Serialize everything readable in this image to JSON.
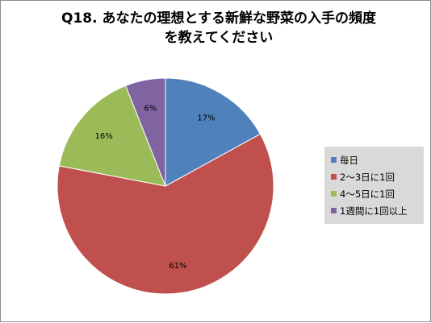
{
  "chart_data": {
    "type": "pie",
    "title_line1": "Q18. あなたの理想とする新鮮な野菜の入手の頻度",
    "title_line2": "を教えてください",
    "categories": [
      "毎日",
      "2～3日に1回",
      "4～5日に1回",
      "1週間に1回以上"
    ],
    "values": [
      17,
      61,
      16,
      6
    ],
    "labels": [
      "17%",
      "61%",
      "16%",
      "6%"
    ],
    "colors": [
      "#4f81bd",
      "#c0504d",
      "#9bbb59",
      "#8064a2"
    ],
    "legend_position": "right",
    "start": "12 o'clock",
    "direction": "clockwise"
  }
}
